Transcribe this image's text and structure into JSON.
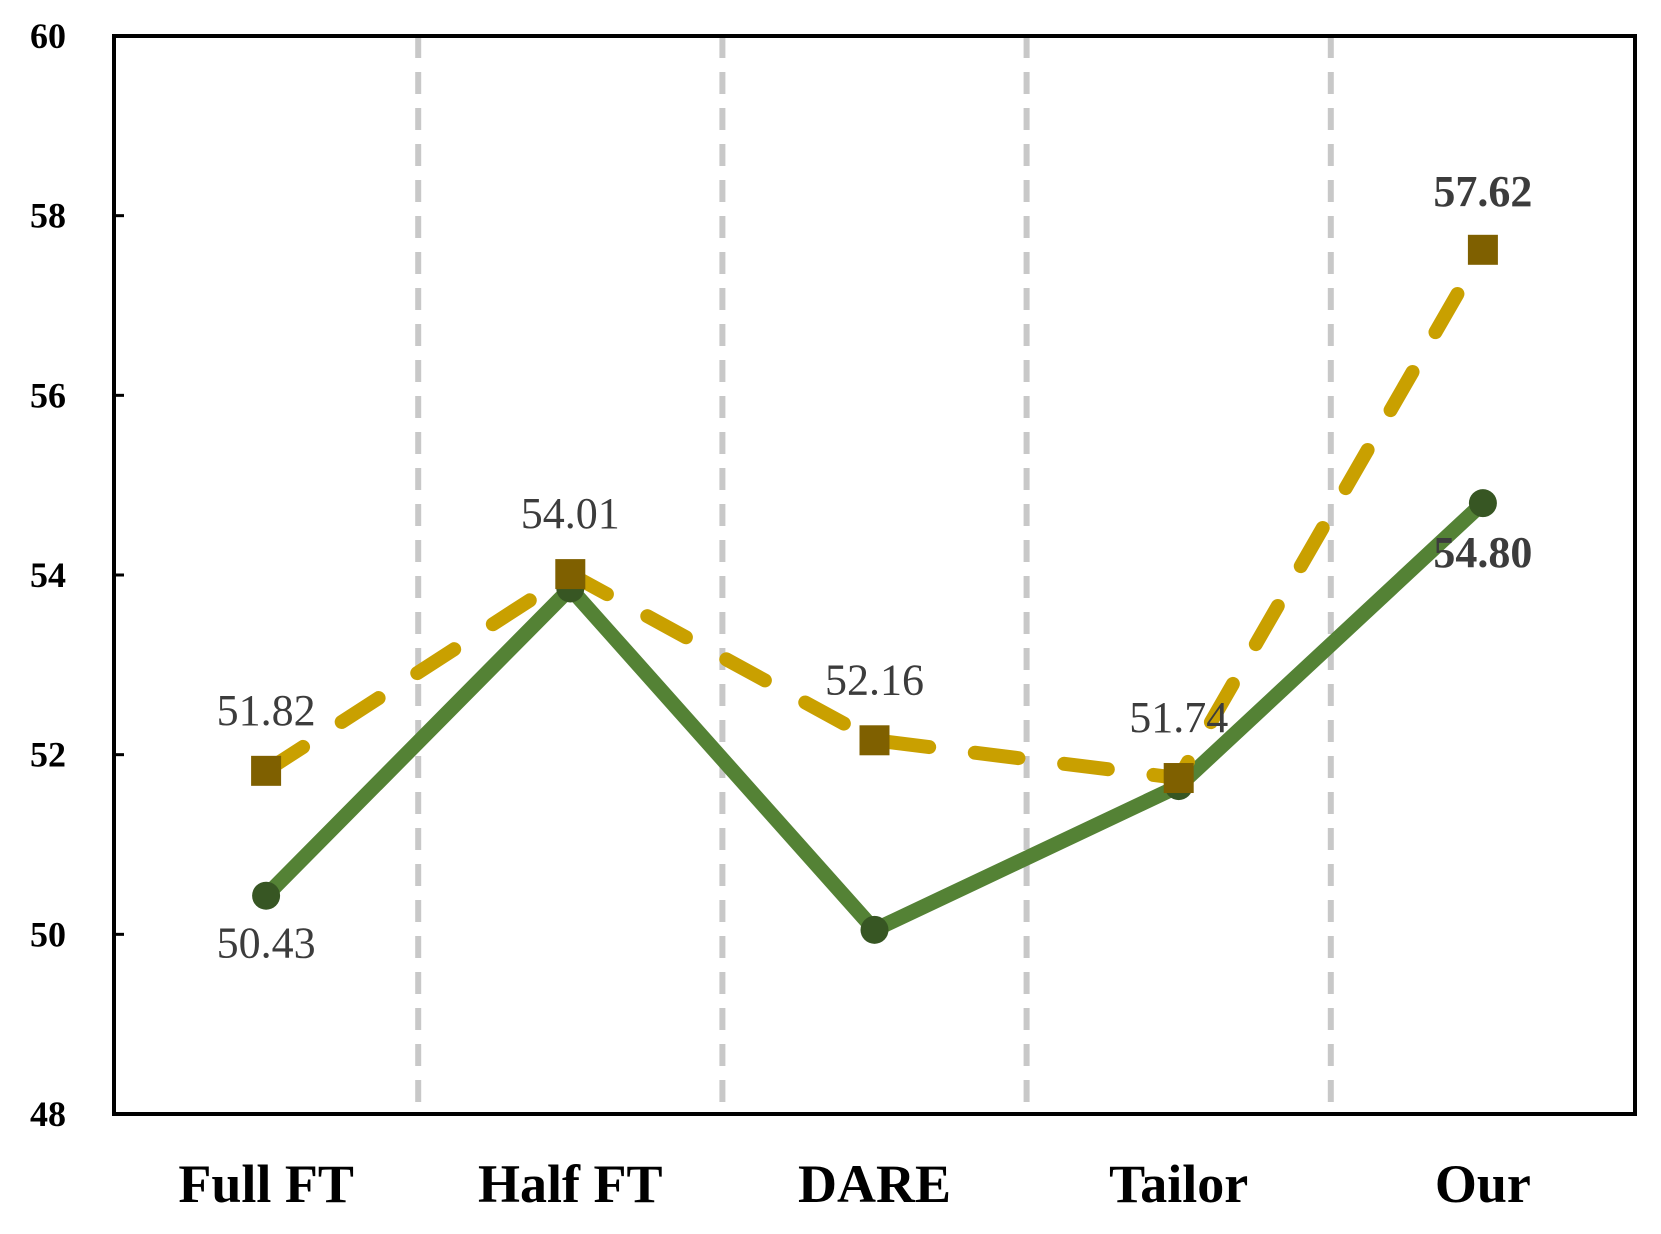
{
  "chart_data": {
    "type": "line",
    "title": "",
    "xlabel": "",
    "ylabel": "",
    "ylim": [
      48,
      60
    ],
    "yticks": [
      48,
      50,
      52,
      54,
      56,
      58,
      60
    ],
    "categories": [
      "Full FT",
      "Half FT",
      "DARE",
      "Tailor",
      "Our"
    ],
    "grid": "vertical dashed separators between categories",
    "legend": "none",
    "series": [
      {
        "name": "series-solid-green",
        "style": "solid",
        "marker": "circle",
        "color": "#548235",
        "marker_color": "#375623",
        "values": [
          50.43,
          53.85,
          50.05,
          51.65,
          54.8
        ],
        "labels": [
          "50.43",
          "",
          "",
          "",
          "54.80"
        ],
        "label_bold": [
          false,
          false,
          false,
          false,
          true
        ]
      },
      {
        "name": "series-dashed-gold",
        "style": "dashed",
        "marker": "square",
        "color": "#C9A000",
        "marker_color": "#7F6000",
        "values": [
          51.82,
          54.01,
          52.16,
          51.74,
          57.62
        ],
        "labels": [
          "51.82",
          "54.01",
          "52.16",
          "51.74",
          "57.62"
        ],
        "label_bold": [
          false,
          false,
          false,
          false,
          true
        ]
      }
    ]
  }
}
